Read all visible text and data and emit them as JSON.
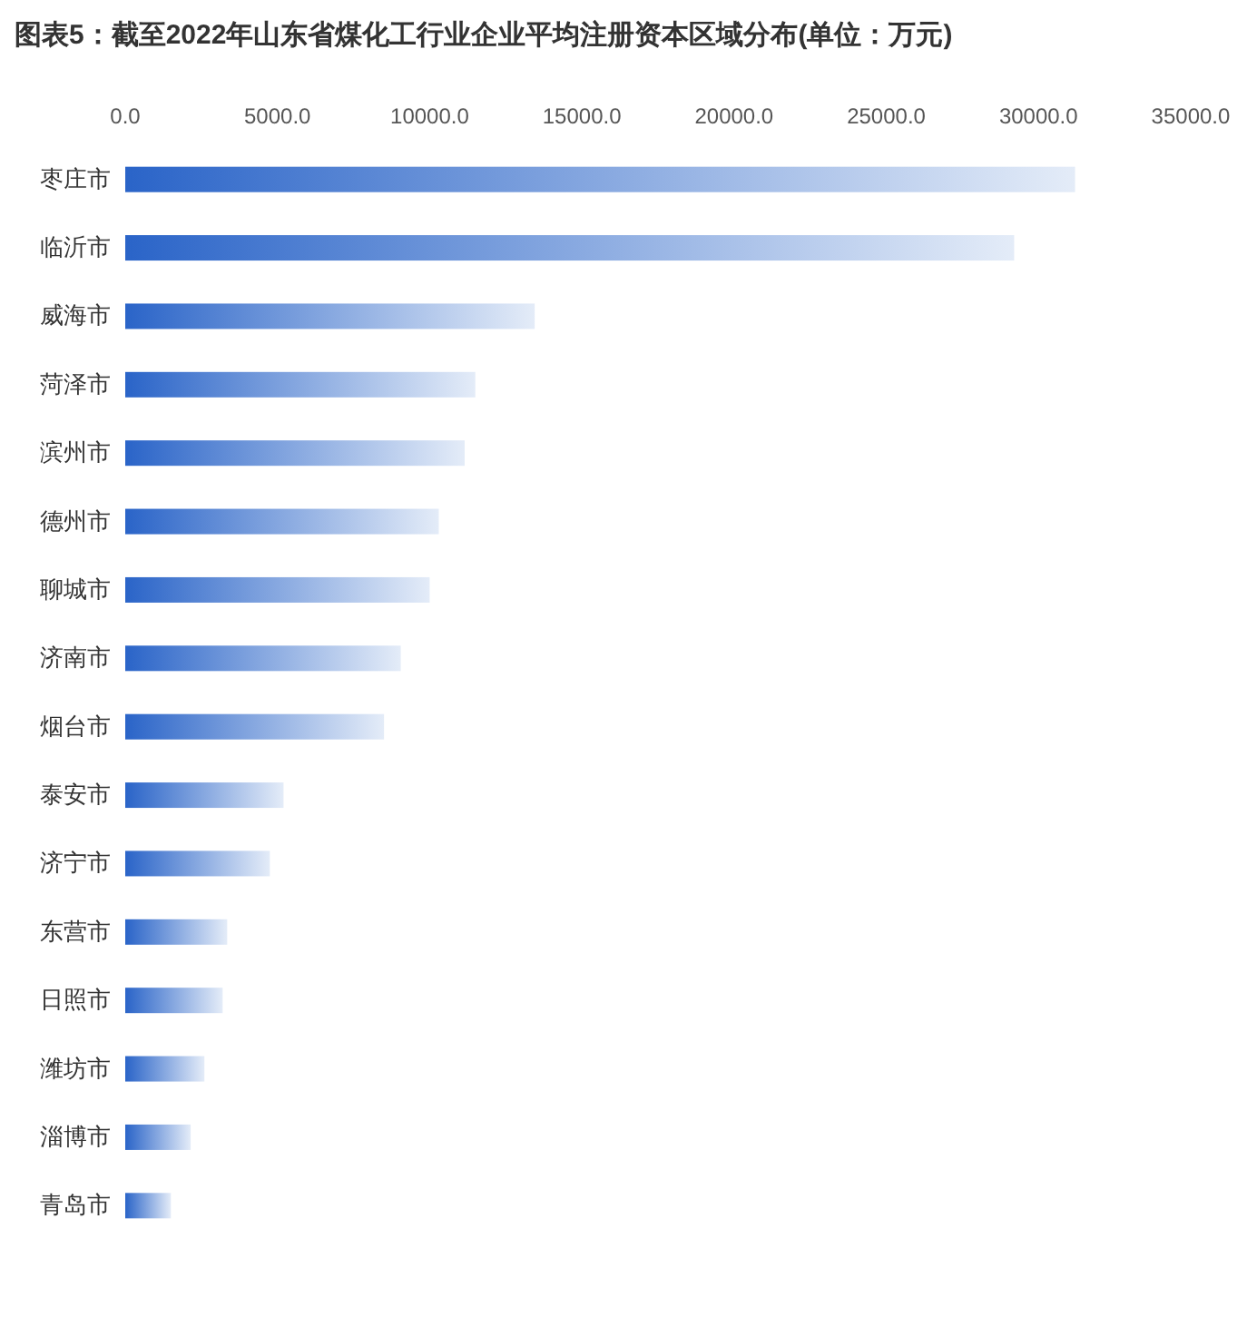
{
  "chart_data": {
    "type": "bar",
    "orientation": "horizontal",
    "title": "图表5：截至2022年山东省煤化工行业企业平均注册资本区域分布(单位：万元)",
    "categories": [
      "枣庄市",
      "临沂市",
      "威海市",
      "菏泽市",
      "滨州市",
      "德州市",
      "聊城市",
      "济南市",
      "烟台市",
      "泰安市",
      "济宁市",
      "东营市",
      "日照市",
      "潍坊市",
      "淄博市",
      "青岛市"
    ],
    "values": [
      31200,
      29200,
      13450,
      11500,
      11150,
      10300,
      10000,
      9050,
      8500,
      5200,
      4750,
      3350,
      3200,
      2600,
      2150,
      1500
    ],
    "color": "#2a64c8",
    "xlim": [
      0,
      35000
    ],
    "xticks": [
      {
        "value": 0,
        "label": "0.0"
      },
      {
        "value": 5000,
        "label": "5000.0"
      },
      {
        "value": 10000,
        "label": "10000.0"
      },
      {
        "value": 15000,
        "label": "15000.0"
      },
      {
        "value": 20000,
        "label": "20000.0"
      },
      {
        "value": 25000,
        "label": "25000.0"
      },
      {
        "value": 30000,
        "label": "30000.0"
      },
      {
        "value": 35000,
        "label": "35000.0"
      }
    ]
  }
}
